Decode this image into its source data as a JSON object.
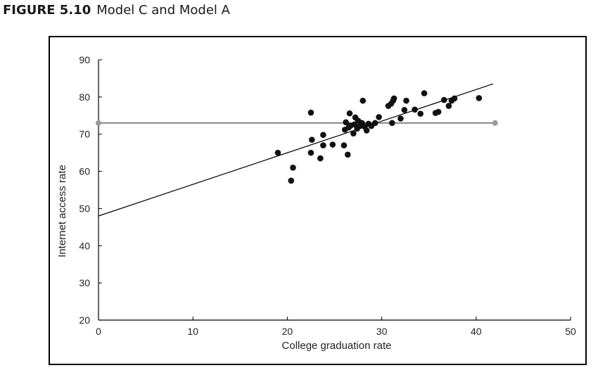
{
  "figure": {
    "number": "FIGURE 5.10",
    "title": "Model C and Model A"
  },
  "chart_data": {
    "type": "scatter",
    "xlabel": "College graduation rate",
    "ylabel": "Internet access rate",
    "xlim": [
      0,
      50
    ],
    "ylim": [
      20,
      90
    ],
    "xticks": [
      0,
      10,
      20,
      30,
      40,
      50
    ],
    "yticks": [
      20,
      30,
      40,
      50,
      60,
      70,
      80,
      90
    ],
    "grid": false,
    "points": [
      {
        "x": 19.0,
        "y": 65.0
      },
      {
        "x": 20.4,
        "y": 57.5
      },
      {
        "x": 20.6,
        "y": 61.0
      },
      {
        "x": 22.5,
        "y": 75.8
      },
      {
        "x": 22.5,
        "y": 65.0
      },
      {
        "x": 22.6,
        "y": 68.5
      },
      {
        "x": 23.5,
        "y": 63.5
      },
      {
        "x": 23.8,
        "y": 67.0
      },
      {
        "x": 23.8,
        "y": 69.8
      },
      {
        "x": 24.8,
        "y": 67.2
      },
      {
        "x": 26.0,
        "y": 67.0
      },
      {
        "x": 26.1,
        "y": 71.2
      },
      {
        "x": 26.2,
        "y": 73.2
      },
      {
        "x": 26.4,
        "y": 64.5
      },
      {
        "x": 26.5,
        "y": 71.8
      },
      {
        "x": 26.6,
        "y": 75.6
      },
      {
        "x": 26.7,
        "y": 72.3
      },
      {
        "x": 27.0,
        "y": 70.2
      },
      {
        "x": 27.1,
        "y": 72.6
      },
      {
        "x": 27.2,
        "y": 74.5
      },
      {
        "x": 27.4,
        "y": 71.5
      },
      {
        "x": 27.5,
        "y": 73.6
      },
      {
        "x": 27.7,
        "y": 72.2
      },
      {
        "x": 27.9,
        "y": 73.0
      },
      {
        "x": 28.0,
        "y": 79.0
      },
      {
        "x": 28.2,
        "y": 72.0
      },
      {
        "x": 28.4,
        "y": 71.0
      },
      {
        "x": 28.6,
        "y": 72.8
      },
      {
        "x": 28.9,
        "y": 72.2
      },
      {
        "x": 29.3,
        "y": 73.0
      },
      {
        "x": 29.7,
        "y": 74.6
      },
      {
        "x": 30.7,
        "y": 77.6
      },
      {
        "x": 31.0,
        "y": 78.2
      },
      {
        "x": 31.1,
        "y": 73.0
      },
      {
        "x": 31.2,
        "y": 79.0
      },
      {
        "x": 31.3,
        "y": 79.6
      },
      {
        "x": 32.0,
        "y": 74.2
      },
      {
        "x": 32.4,
        "y": 76.5
      },
      {
        "x": 32.6,
        "y": 79.0
      },
      {
        "x": 33.5,
        "y": 76.6
      },
      {
        "x": 34.1,
        "y": 75.5
      },
      {
        "x": 34.5,
        "y": 81.0
      },
      {
        "x": 35.7,
        "y": 75.7
      },
      {
        "x": 36.0,
        "y": 76.0
      },
      {
        "x": 36.6,
        "y": 79.2
      },
      {
        "x": 37.1,
        "y": 77.6
      },
      {
        "x": 37.4,
        "y": 79.0
      },
      {
        "x": 37.7,
        "y": 79.6
      },
      {
        "x": 40.3,
        "y": 79.7
      }
    ],
    "lines": [
      {
        "type": "regression",
        "intercept": 48.0,
        "slope": 0.85,
        "x_range": [
          0,
          41.8
        ]
      },
      {
        "type": "mean",
        "y": 73.0,
        "x_range": [
          0,
          42
        ],
        "endpoint_markers": true
      }
    ]
  }
}
